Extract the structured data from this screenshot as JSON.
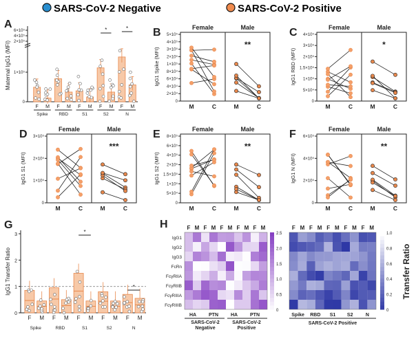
{
  "legend": {
    "negative_label": "SARS-CoV-2 Negative",
    "positive_label": "SARS-CoV-2 Positive",
    "negative_color": "#2a8fd0",
    "positive_color": "#f08b4e"
  },
  "colors": {
    "bar_fill": "#f7c9a8",
    "bar_edge": "#e8884c",
    "point_fill": "#f5a06a",
    "male_point_fill": "#8b3a14",
    "line": "#222222"
  },
  "panel_letters": [
    "A",
    "B",
    "C",
    "D",
    "E",
    "F",
    "G",
    "H"
  ],
  "panel_A": {
    "ylabel": "Maternal IgG1 (MFI)",
    "yticks": [
      "6×10⁵",
      "4×10⁵",
      "2×10⁵",
      "1×10⁵",
      "0"
    ],
    "group_labels": [
      "Spike",
      "RBD",
      "S1",
      "S2",
      "N"
    ],
    "sex_labels": [
      "F",
      "M"
    ],
    "sig_marks": [
      "*",
      "*"
    ],
    "chart_data": {
      "type": "bar",
      "categories": [
        "Spike F",
        "Spike M",
        "RBD F",
        "RBD M",
        "S1 F",
        "S1 M",
        "S2 F",
        "S2 M",
        "N F",
        "N M"
      ],
      "values": [
        60000,
        15000,
        95000,
        40000,
        45000,
        20000,
        140000,
        40000,
        185000,
        70000
      ]
    }
  },
  "paired_panels": [
    {
      "id": "B",
      "ylabel": "IgG1 Spike (MFI)",
      "yticks": [
        "5×10⁵",
        "4×10⁵",
        "3×10⁵",
        "2×10⁵",
        "1×10⁵",
        "8×10⁴",
        "6×10⁴",
        "4×10⁴",
        "2×10⁴",
        "0"
      ],
      "female_label": "Female",
      "male_label": "Male",
      "x_labels": [
        "M",
        "C"
      ],
      "sig": "**"
    },
    {
      "id": "C",
      "ylabel": "IgG1 RBD (MFI)",
      "yticks": [
        "4×10⁵",
        "3×10⁵",
        "2×10⁵",
        "1.5×10⁵",
        "1×10⁵",
        "5×10⁴",
        "0"
      ],
      "female_label": "Female",
      "male_label": "Male",
      "x_labels": [
        "M",
        "C"
      ],
      "sig": "*"
    },
    {
      "id": "D",
      "ylabel": "IgG1 S1 (MFI)",
      "yticks": [
        "3×10⁵",
        "2×10⁵",
        "1×10⁵",
        "0"
      ],
      "female_label": "Female",
      "male_label": "Male",
      "x_labels": [
        "M",
        "C"
      ],
      "sig": "***"
    },
    {
      "id": "E",
      "ylabel": "IgG1 S2 (MFI)",
      "yticks": [
        "8×10⁵",
        "6×10⁵",
        "4×10⁵",
        "2×10⁵",
        "1.5×10⁵",
        "1×10⁵",
        "5×10⁴",
        "0"
      ],
      "female_label": "Female",
      "male_label": "Male",
      "x_labels": [
        "M",
        "C"
      ],
      "sig": "**"
    },
    {
      "id": "F",
      "ylabel": "IgG1 N (MFI)",
      "yticks": [
        "6×10⁵",
        "4×10⁵",
        "2×10⁵",
        "0"
      ],
      "female_label": "Female",
      "male_label": "Male",
      "x_labels": [
        "M",
        "C"
      ],
      "sig": "**"
    }
  ],
  "panel_G": {
    "ylabel": "IgG1 Transfer Ratio",
    "yticks": [
      "3",
      "2",
      "1",
      "0"
    ],
    "group_labels": [
      "Spike",
      "RBD",
      "S1",
      "S2",
      "N"
    ],
    "sex_labels": [
      "F",
      "M"
    ],
    "sig_marks": [
      "*",
      "*"
    ],
    "chart_data": {
      "type": "bar",
      "categories": [
        "Spike F",
        "Spike M",
        "RBD F",
        "RBD M",
        "S1 F",
        "S1 M",
        "S2 F",
        "S2 M",
        "N F",
        "N M"
      ],
      "values": [
        0.85,
        0.45,
        0.95,
        0.5,
        1.5,
        0.45,
        0.8,
        0.45,
        0.7,
        0.55
      ]
    }
  },
  "panel_H": {
    "row_labels": [
      "IgG1",
      "IgG2",
      "IgG3",
      "FcRn",
      "FcγRIIA",
      "FcγRIIB",
      "FcγRIIIA",
      "FcγRIIIB"
    ],
    "sex_labels": [
      "F",
      "M"
    ],
    "left_groups": [
      "HA",
      "PTN",
      "HA",
      "PTN"
    ],
    "left_bottom_1": "SARS-CoV-2",
    "left_bottom_2a": "Negative",
    "left_bottom_2b": "Positive",
    "left_cbar_ticks": [
      "2.5",
      "2.0",
      "1.5",
      "1.0",
      "0.5",
      "0"
    ],
    "right_groups": [
      "Spike",
      "RBD",
      "S1",
      "S2",
      "N"
    ],
    "right_bottom": "SARS-CoV-2 Positive",
    "right_cbar_ticks": [
      "1.0",
      "0.8",
      "0.6",
      "0.4",
      "0.2",
      "0"
    ],
    "cbar_title": "Transfer Ratio"
  }
}
